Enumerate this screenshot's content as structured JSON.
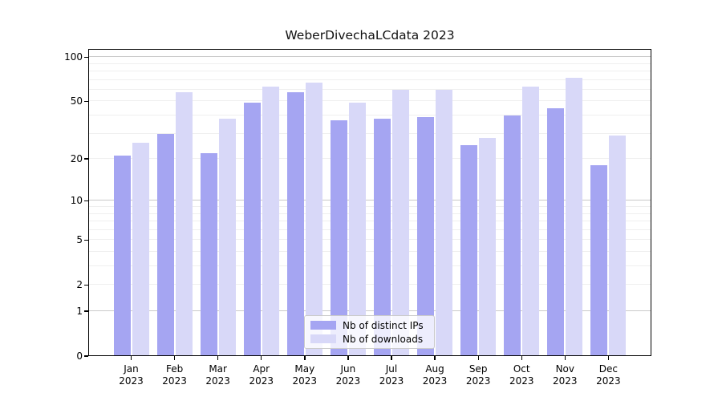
{
  "chart_data": {
    "type": "bar",
    "title": "WeberDivechaLCdata 2023",
    "categories": [
      "Jan",
      "Feb",
      "Mar",
      "Apr",
      "May",
      "Jun",
      "Jul",
      "Aug",
      "Sep",
      "Oct",
      "Nov",
      "Dec"
    ],
    "year": "2023",
    "series": [
      {
        "name": "Nb of distinct IPs",
        "color": "#a5a5f2",
        "values": [
          21,
          30,
          22,
          49,
          58,
          37,
          38,
          39,
          25,
          40,
          45,
          18
        ]
      },
      {
        "name": "Nb of downloads",
        "color": "#d8d8f8",
        "values": [
          26,
          58,
          38,
          63,
          67,
          49,
          60,
          60,
          28,
          63,
          72,
          29
        ]
      }
    ],
    "xlabel": "",
    "ylabel": "",
    "yscale": "log1p",
    "ylim": [
      0,
      113
    ],
    "yticks": [
      100,
      50,
      20,
      10,
      5,
      2,
      1,
      0
    ],
    "grid_major": [
      1,
      10,
      100
    ],
    "grid_minor": [
      2,
      3,
      4,
      5,
      6,
      7,
      8,
      9,
      20,
      30,
      40,
      50,
      60,
      70,
      80,
      90
    ],
    "grid": true,
    "legend_position": "lower center inside"
  },
  "legend": {
    "items": [
      {
        "label": "Nb of distinct IPs"
      },
      {
        "label": "Nb of downloads"
      }
    ]
  },
  "colors": {
    "bar_distinct_ips": "#a5a5f2",
    "bar_downloads": "#d8d8f8",
    "grid_minor": "#efefef",
    "grid_major": "#c9c9c9",
    "axis": "#000000",
    "background": "#ffffff"
  }
}
